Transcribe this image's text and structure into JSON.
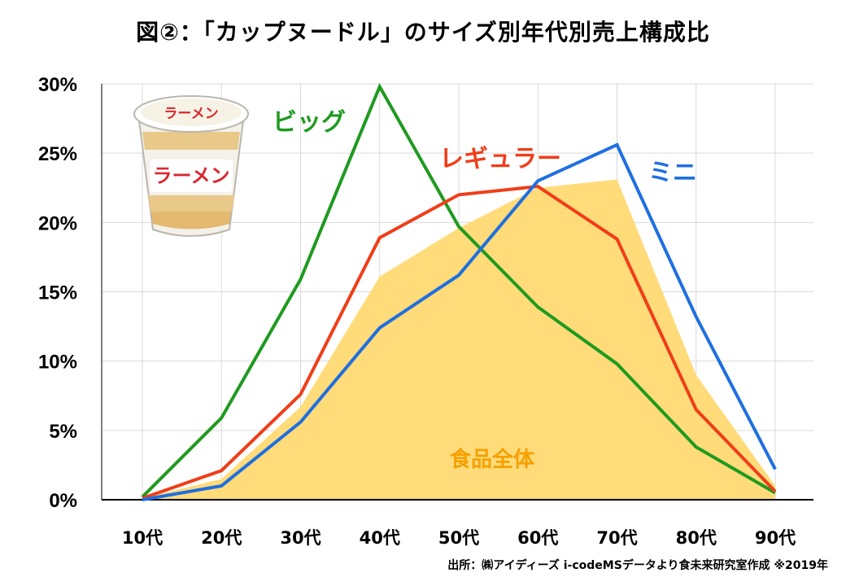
{
  "title": "図②：「カップヌードル」のサイズ別年代別売上構成比",
  "source": "出所：㈱アイディーズ  i-codeMSデータより食未来研究室作成  ※2019年",
  "cup_icon": {
    "name": "ramen-cup-icon",
    "lid_text": "ラーメン",
    "body_text": "ラーメン"
  },
  "chart_data": {
    "type": "line",
    "title": "図②：「カップヌードル」のサイズ別年代別売上構成比",
    "xlabel": "",
    "ylabel": "",
    "categories": [
      "10代",
      "20代",
      "30代",
      "40代",
      "50代",
      "60代",
      "70代",
      "80代",
      "90代"
    ],
    "ylim": [
      0,
      30
    ],
    "yticks": [
      0,
      5,
      10,
      15,
      20,
      25,
      30
    ],
    "ytick_labels": [
      "0%",
      "5%",
      "10%",
      "15%",
      "20%",
      "25%",
      "30%"
    ],
    "grid": true,
    "area": {
      "name": "食品全体",
      "type": "area",
      "color": "#ffdb7a",
      "label_color": "#f5a000",
      "values": [
        0.1,
        1.5,
        6.7,
        16.1,
        19.6,
        22.5,
        23.1,
        9.0,
        1.0
      ]
    },
    "series": [
      {
        "name": "ビッグ",
        "color": "#1f9a1f",
        "values": [
          0.2,
          5.9,
          15.9,
          29.8,
          19.7,
          13.9,
          9.8,
          3.8,
          0.5
        ]
      },
      {
        "name": "レギュラー",
        "color": "#ef3e19",
        "values": [
          0.1,
          2.1,
          7.6,
          18.9,
          22.0,
          22.6,
          18.8,
          6.5,
          0.6
        ]
      },
      {
        "name": "ミニ",
        "color": "#1f6fe0",
        "values": [
          0.0,
          1.0,
          5.6,
          12.4,
          16.2,
          23.0,
          25.6,
          13.2,
          2.2
        ]
      }
    ]
  }
}
